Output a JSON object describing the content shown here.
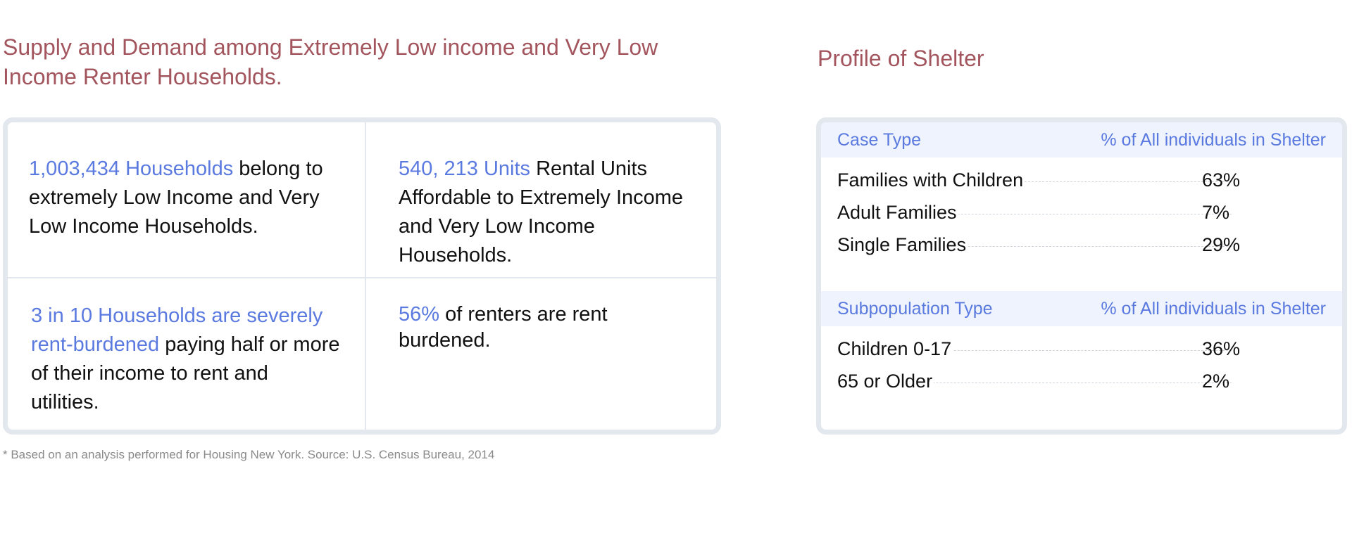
{
  "left": {
    "title": "Supply and Demand among Extremely Low income and Very Low Income Renter Households.",
    "cells": [
      {
        "highlight": "1,003,434 Households",
        "text": " belong to extremely Low Income and Very Low Income Households."
      },
      {
        "highlight": "540, 213 Units",
        "text": " Rental Units Affordable to Extremely  Income and Very Low Income Households."
      },
      {
        "highlight": "3 in 10 Households are severely rent-burdened",
        "text": " paying half or more of their income to rent and utilities."
      },
      {
        "highlight": "56%",
        "text": " of renters are rent burdened."
      }
    ],
    "footnote": "* Based on an analysis performed for Housing New York. Source: U.S. Census Bureau, 2014"
  },
  "right": {
    "title": "Profile of Shelter",
    "sections": [
      {
        "header": "Case Type",
        "value_header": "% of All individuals in Shelter",
        "rows": [
          {
            "label": "Families with Children",
            "value": "63%"
          },
          {
            "label": "Adult Families",
            "value": "7%"
          },
          {
            "label": "Single Families",
            "value": "29%"
          }
        ]
      },
      {
        "header": "Subpopulation Type",
        "value_header": "% of All individuals in Shelter",
        "rows": [
          {
            "label": "Children 0-17",
            "value": "36%"
          },
          {
            "label": "65 or Older",
            "value": "2%"
          }
        ]
      }
    ]
  },
  "colors": {
    "title": "#a3555e",
    "highlight": "#5b7ae0",
    "border": "#e3e8ee",
    "header_bg": "#eef3fd"
  }
}
